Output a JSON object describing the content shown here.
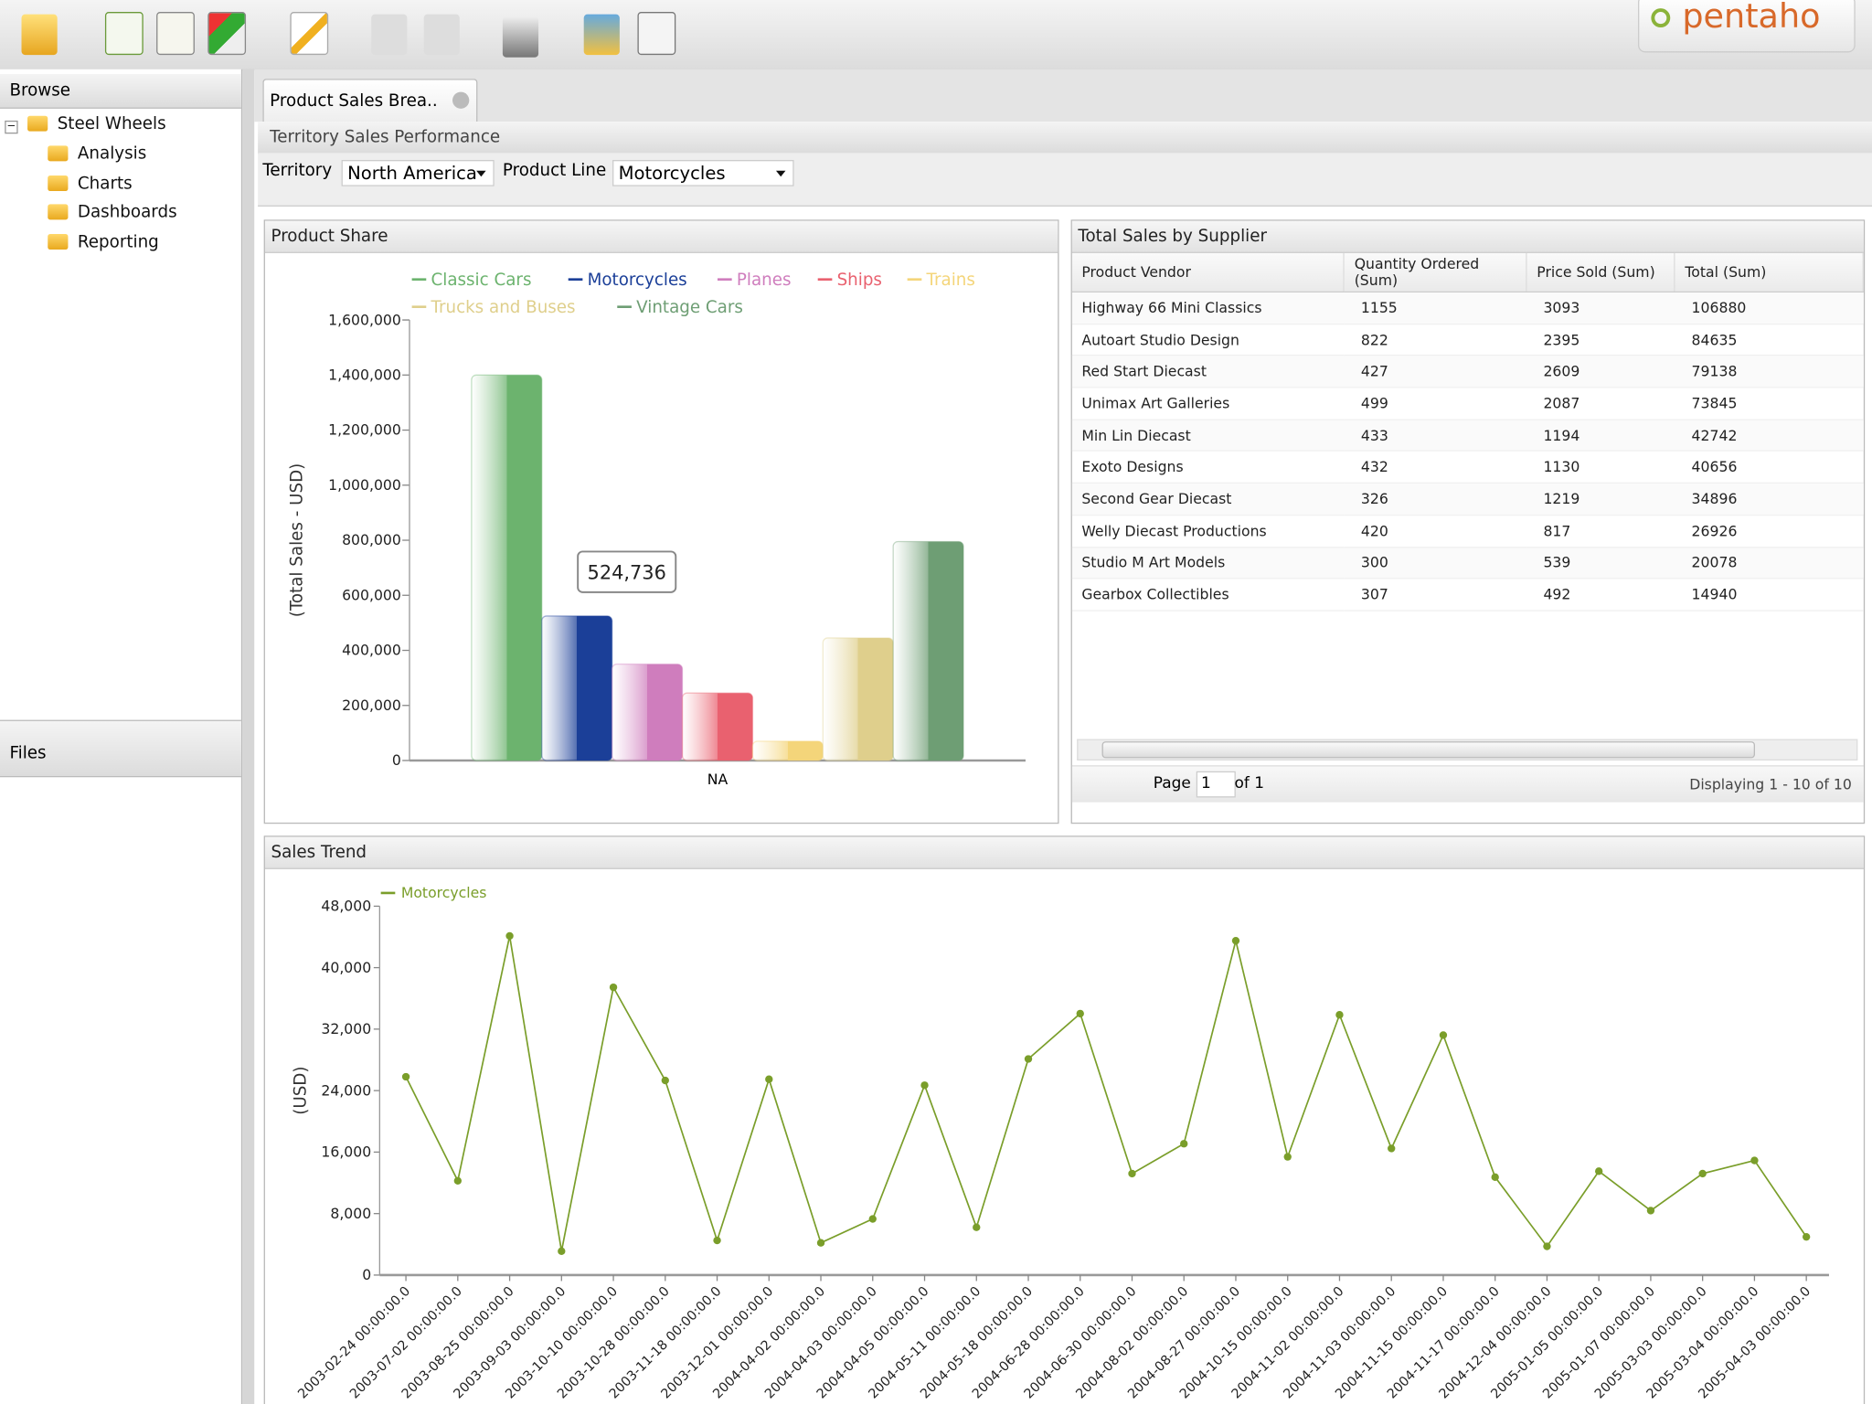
{
  "logo": "pentaho",
  "sidebar": {
    "browse_title": "Browse",
    "tree": {
      "root": "Steel Wheels",
      "children": [
        "Analysis",
        "Charts",
        "Dashboards",
        "Reporting"
      ]
    },
    "files_title": "Files"
  },
  "tab": "Product Sales Brea..",
  "report_title": "Territory Sales Performance",
  "filters": [
    {
      "label": "Territory",
      "value": "North America"
    },
    {
      "label": "Product Line",
      "value": "Motorcycles"
    }
  ],
  "panels": {
    "product_share": "Product Share",
    "supplier": "Total Sales by Supplier",
    "trend": "Sales Trend"
  },
  "chart_data": [
    {
      "type": "bar",
      "y_label": "(Total Sales - USD)",
      "categories": [
        "NA"
      ],
      "series": [
        {
          "name": "Classic Cars",
          "color": "#6cb36e",
          "values": [
            1400000
          ]
        },
        {
          "name": "Motorcycles",
          "color": "#1b3f98",
          "values": [
            524736
          ]
        },
        {
          "name": "Planes",
          "color": "#cf7dbd",
          "values": [
            350000
          ]
        },
        {
          "name": "Ships",
          "color": "#e9616f",
          "values": [
            245000
          ]
        },
        {
          "name": "Trains",
          "color": "#f4d57a",
          "values": [
            70000
          ]
        },
        {
          "name": "Trucks and Buses",
          "color": "#dfcf8c",
          "values": [
            445000
          ]
        },
        {
          "name": "Vintage Cars",
          "color": "#6e9e74",
          "values": [
            795000
          ]
        }
      ],
      "tooltip": "524,736",
      "ylim": [
        0,
        1600000
      ],
      "yticks": [
        0,
        {
          "value": 200000,
          "label": "200,000"
        },
        {
          "value": 400000,
          "label": "400,000"
        },
        {
          "value": 600000,
          "label": "600,000"
        },
        {
          "value": 800000,
          "label": "800,000"
        },
        {
          "value": 1000000,
          "label": "1,000,000"
        },
        {
          "value": 1200000,
          "label": "1,200,000"
        },
        {
          "value": 1400000,
          "label": "1,400,000"
        },
        {
          "value": 1600000,
          "label": "1,600,000"
        }
      ]
    },
    {
      "type": "line",
      "y_label": "(USD)",
      "categories": [
        "2003-02-24 00:00:00.0",
        "2003-07-02 00:00:00.0",
        "2003-08-25 00:00:00.0",
        "2003-09-03 00:00:00.0",
        "2003-10-10 00:00:00.0",
        "2003-10-28 00:00:00.0",
        "2003-11-18 00:00:00.0",
        "2003-12-01 00:00:00.0",
        "2004-04-02 00:00:00.0",
        "2004-04-03 00:00:00.0",
        "2004-04-05 00:00:00.0",
        "2004-05-11 00:00:00.0",
        "2004-05-18 00:00:00.0",
        "2004-06-28 00:00:00.0",
        "2004-06-30 00:00:00.0",
        "2004-08-02 00:00:00.0",
        "2004-08-27 00:00:00.0",
        "2004-10-15 00:00:00.0",
        "2004-11-02 00:00:00.0",
        "2004-11-03 00:00:00.0",
        "2004-11-15 00:00:00.0",
        "2004-11-17 00:00:00.0",
        "2004-12-04 00:00:00.0",
        "2005-01-05 00:00:00.0",
        "2005-01-07 00:00:00.0",
        "2005-03-03 00:00:00.0",
        "2005-03-04 00:00:00.0",
        "2005-04-03 00:00:00.0"
      ],
      "series": [
        {
          "name": "Motorcycles",
          "color": "#7a9e2a",
          "values": [
            25800,
            12270,
            44120,
            3110,
            37440,
            25320,
            4500,
            25480,
            4190,
            7300,
            24700,
            6210,
            28120,
            34020,
            13200,
            17090,
            43500,
            15380,
            33860,
            16470,
            31220,
            12740,
            3730,
            13510,
            8390,
            13200,
            14910,
            4970
          ]
        }
      ],
      "ylim": [
        0,
        48000
      ],
      "yticks": [
        0,
        {
          "value": 8000,
          "label": "8,000"
        },
        {
          "value": 16000,
          "label": "16,000"
        },
        {
          "value": 24000,
          "label": "24,000"
        },
        {
          "value": 32000,
          "label": "32,000"
        },
        {
          "value": 40000,
          "label": "40,000"
        },
        {
          "value": 48000,
          "label": "48,000"
        }
      ]
    }
  ],
  "table": {
    "columns": [
      "Product Vendor",
      "Quantity Ordered (Sum)",
      "Price Sold (Sum)",
      "Total (Sum)"
    ],
    "rows": [
      [
        "Highway 66 Mini Classics",
        "1155",
        "3093",
        "106880"
      ],
      [
        "Autoart Studio Design",
        "822",
        "2395",
        "84635"
      ],
      [
        "Red Start Diecast",
        "427",
        "2609",
        "79138"
      ],
      [
        "Unimax Art Galleries",
        "499",
        "2087",
        "73845"
      ],
      [
        "Min Lin Diecast",
        "433",
        "1194",
        "42742"
      ],
      [
        "Exoto Designs",
        "432",
        "1130",
        "40656"
      ],
      [
        "Second Gear Diecast",
        "326",
        "1219",
        "34896"
      ],
      [
        "Welly Diecast Productions",
        "420",
        "817",
        "26926"
      ],
      [
        "Studio M Art Models",
        "300",
        "539",
        "20078"
      ],
      [
        "Gearbox Collectibles",
        "307",
        "492",
        "14940"
      ]
    ],
    "pager": {
      "page_label": "Page",
      "page": "1",
      "of": "of 1",
      "display": "Displaying 1 - 10 of 10"
    }
  }
}
